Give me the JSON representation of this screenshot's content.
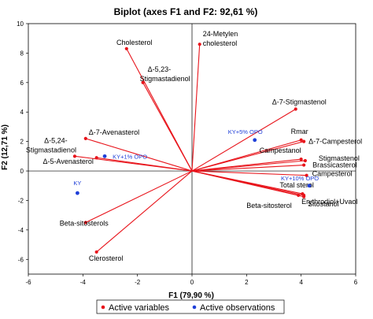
{
  "chart_data": {
    "type": "scatter",
    "title": "Biplot (axes F1 and F2: 92,61 %)",
    "xlabel": "F1 (79,90 %)",
    "ylabel": "F2 (12,71 %)",
    "xlim": [
      -6,
      6
    ],
    "ylim": [
      -7,
      10
    ],
    "x_ticks": [
      -6,
      -4,
      -2,
      0,
      2,
      4,
      6
    ],
    "y_ticks": [
      -6,
      -4,
      -2,
      0,
      2,
      4,
      6,
      8,
      10
    ],
    "grid": false,
    "legend_position": "bottom",
    "legend": [
      {
        "name": "Active variables",
        "color": "#e8141b"
      },
      {
        "name": "Active observations",
        "color": "#1f3fd8"
      }
    ],
    "variables": [
      {
        "name": "Cholesterol",
        "x": -2.4,
        "y": 8.3
      },
      {
        "name": "24-Metylen cholesterol",
        "x": 0.28,
        "y": 8.6
      },
      {
        "name": "Δ-5,23- Stigmastadienol",
        "x": -1.8,
        "y": 6.0
      },
      {
        "name": "Δ-7-Avenasterol",
        "x": -3.9,
        "y": 2.2
      },
      {
        "name": "Δ-5,24- Stigmastadienol",
        "x": -4.3,
        "y": 1.0
      },
      {
        "name": "Δ-5-Avenasterol",
        "x": -3.5,
        "y": 0.9
      },
      {
        "name": "Beta-sitosterols",
        "x": -3.9,
        "y": -3.5
      },
      {
        "name": "Clerosterol",
        "x": -3.5,
        "y": -5.5
      },
      {
        "name": "Δ-7-Stigmastenol",
        "x": 3.8,
        "y": 4.2
      },
      {
        "name": "Rmar",
        "x": 4.0,
        "y": 2.1
      },
      {
        "name": "Δ-7-Campesterol",
        "x": 4.1,
        "y": 2.0
      },
      {
        "name": "Campestanol",
        "x": 4.0,
        "y": 0.8
      },
      {
        "name": "Stigmastenol",
        "x": 4.15,
        "y": 0.7
      },
      {
        "name": "Brassicasterol",
        "x": 4.1,
        "y": 0.4
      },
      {
        "name": "Campesterol",
        "x": 4.2,
        "y": -0.3
      },
      {
        "name": "Total sterol",
        "x": 4.05,
        "y": -1.55
      },
      {
        "name": "Erythrodiol+Uvaol",
        "x": 4.1,
        "y": -1.65
      },
      {
        "name": "Beta-sitosterol",
        "x": 3.9,
        "y": -1.65
      },
      {
        "name": "Sitostanol",
        "x": 4.1,
        "y": -1.75
      }
    ],
    "observations": [
      {
        "name": "KY",
        "x": -4.2,
        "y": -1.5
      },
      {
        "name": "KY+1% OPO",
        "x": -3.2,
        "y": 1.0
      },
      {
        "name": "KY+5% OPO",
        "x": 2.3,
        "y": 2.1
      },
      {
        "name": "KY+10% OPO",
        "x": 4.3,
        "y": -1.0
      }
    ]
  }
}
